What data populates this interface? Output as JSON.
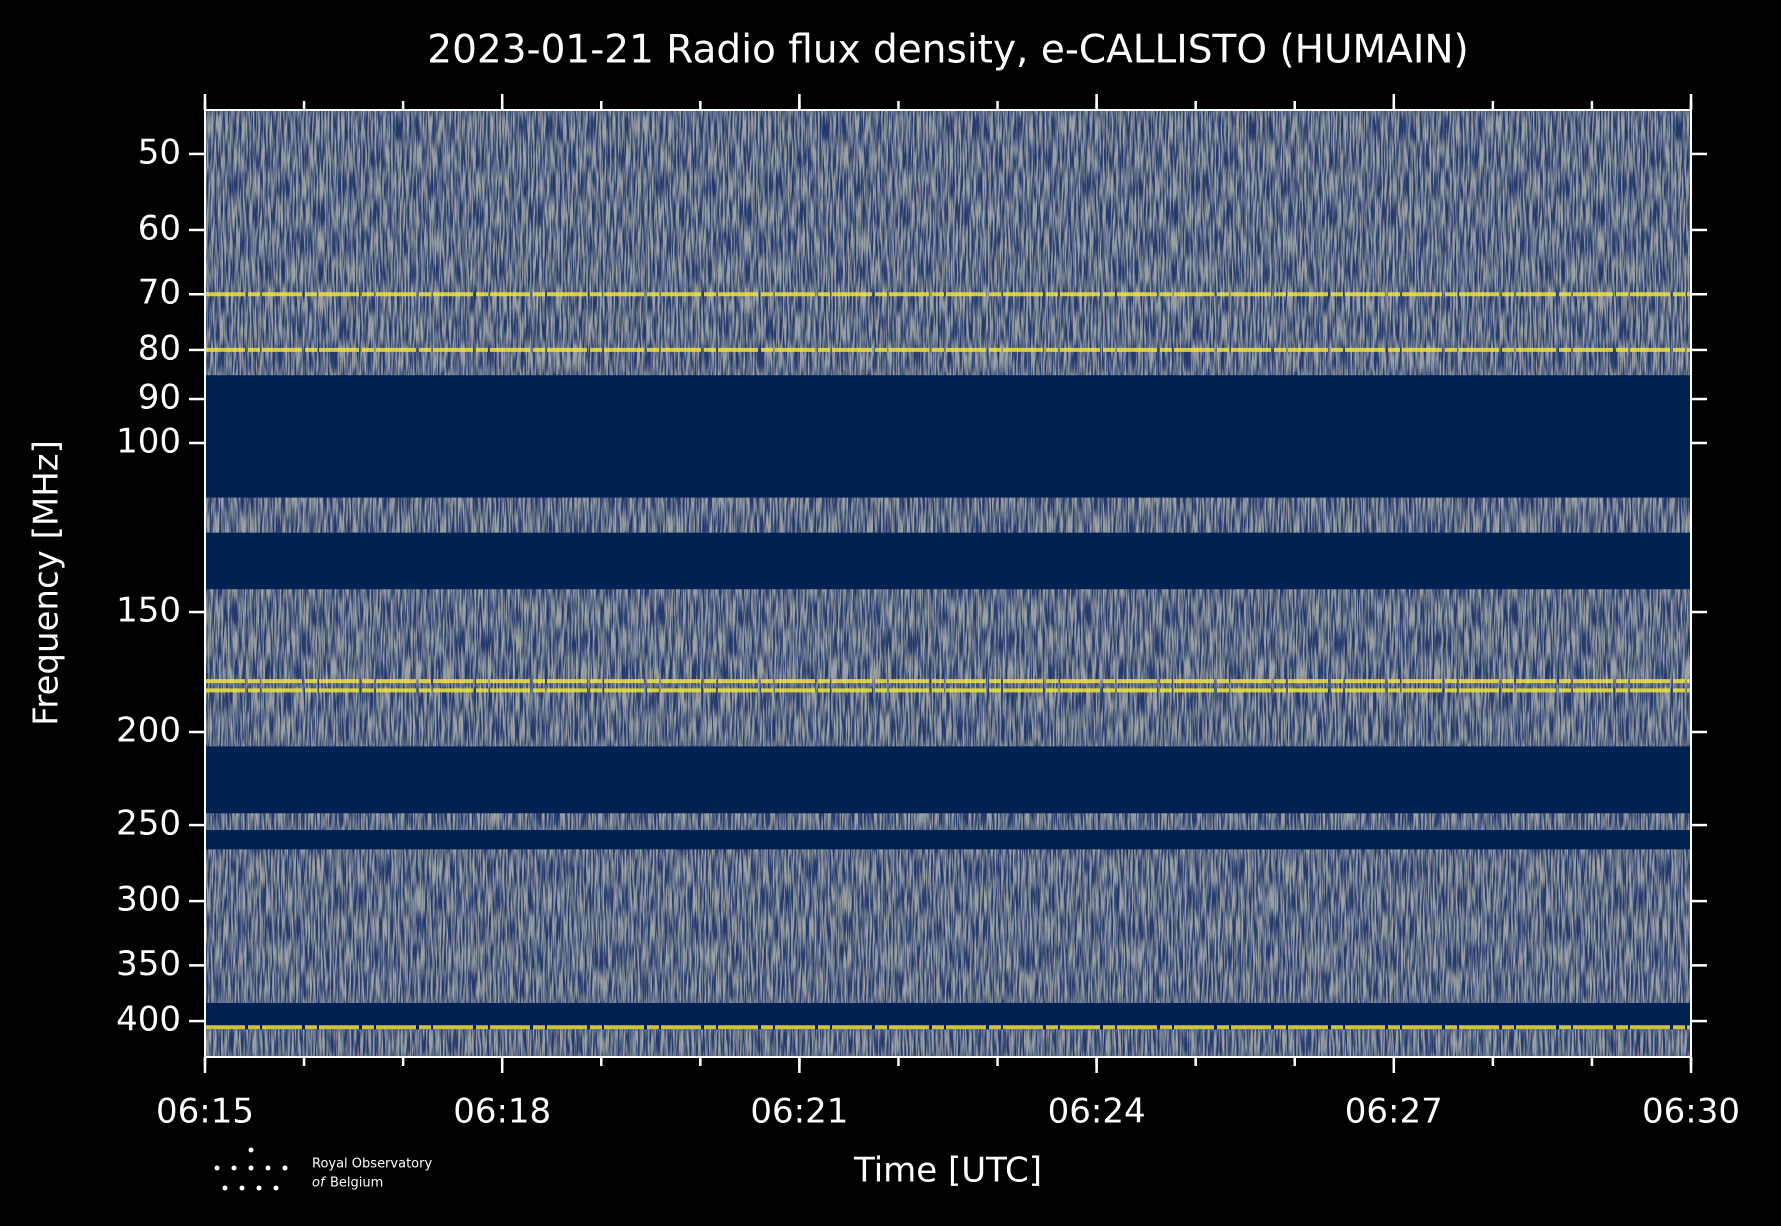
{
  "chart_data": {
    "type": "spectrogram",
    "title": "2023-01-21 Radio flux density, e-CALLISTO (HUMAIN)",
    "xlabel": "Time [UTC]",
    "ylabel": "Frequency [MHz]",
    "xlim": [
      "06:15",
      "06:30"
    ],
    "xticks": [
      "06:15",
      "06:18",
      "06:21",
      "06:24",
      "06:27",
      "06:30"
    ],
    "ylim": [
      45,
      436
    ],
    "y_log": true,
    "y_inverted": true,
    "yticks": [
      50,
      60,
      70,
      80,
      90,
      100,
      150,
      200,
      250,
      300,
      350,
      400
    ],
    "masked_bands": [
      [
        85,
        114
      ],
      [
        124,
        142
      ],
      [
        207,
        243
      ],
      [
        253,
        265
      ],
      [
        383,
        408
      ]
    ],
    "bright_lines": [
      70,
      80,
      177,
      181,
      406
    ]
  },
  "logo": {
    "line1": "Royal Observatory",
    "line2_prefix": "of",
    "line2": "Belgium"
  }
}
